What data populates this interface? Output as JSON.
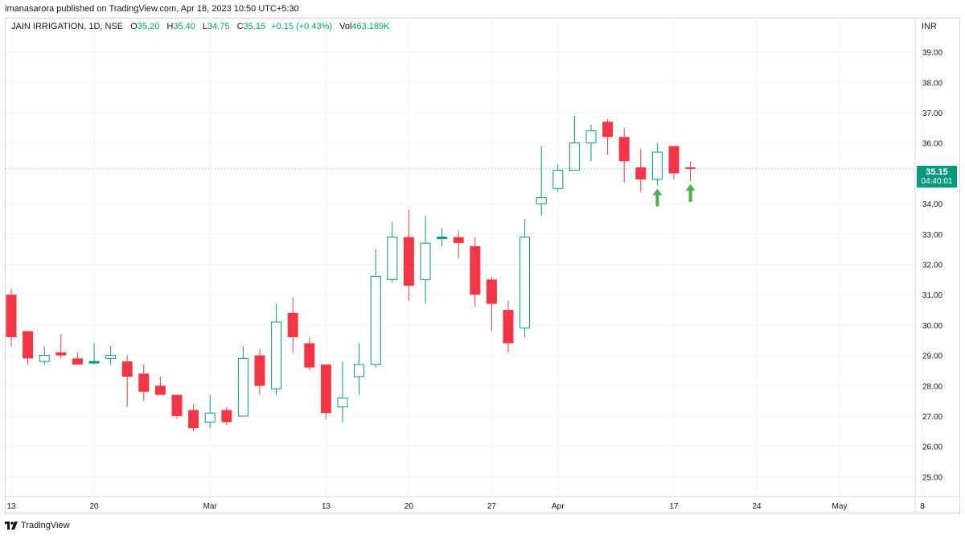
{
  "header": {
    "published_by": "imanasarora published on TradingView.com, Apr 18, 2023 10:50 UTC+5:30"
  },
  "legend": {
    "symbol": "JAIN IRRIGATION, 1D, NSE",
    "open_label": "O",
    "open": "35.20",
    "high_label": "H",
    "high": "35.40",
    "low_label": "L",
    "low": "34.75",
    "close_label": "C",
    "close": "35.15",
    "change": "+0.15 (+0.43%)",
    "volume_label": "Vol",
    "volume": "463.189K"
  },
  "currency": "INR",
  "price_tag": {
    "price": "35.15",
    "countdown": "04:40:01"
  },
  "footer": {
    "brand": "TradingView"
  },
  "colors": {
    "up": "#089981",
    "down": "#f23645",
    "grid": "#f0f3fa",
    "arrow": "#4caf50"
  },
  "chart_data": {
    "type": "candlestick",
    "ylim": [
      24.4,
      39.6
    ],
    "y_ticks": [
      "39.00",
      "38.00",
      "37.00",
      "36.00",
      "35.00",
      "34.00",
      "33.00",
      "32.00",
      "31.00",
      "30.00",
      "29.00",
      "28.00",
      "27.00",
      "26.00",
      "25.00"
    ],
    "x_ticks": [
      {
        "label": "13",
        "i": 0
      },
      {
        "label": "20",
        "i": 5
      },
      {
        "label": "Mar",
        "i": 12
      },
      {
        "label": "13",
        "i": 19
      },
      {
        "label": "20",
        "i": 24
      },
      {
        "label": "27",
        "i": 29
      },
      {
        "label": "Apr",
        "i": 33
      },
      {
        "label": "17",
        "i": 40
      },
      {
        "label": "24",
        "i": 45
      },
      {
        "label": "May",
        "i": 50
      },
      {
        "label": "8",
        "i": 55
      }
    ],
    "candles": [
      {
        "o": 31.0,
        "h": 31.2,
        "l": 29.3,
        "c": 29.6
      },
      {
        "o": 29.8,
        "h": 29.8,
        "l": 28.7,
        "c": 28.9
      },
      {
        "o": 28.8,
        "h": 29.3,
        "l": 28.7,
        "c": 29.0
      },
      {
        "o": 29.1,
        "h": 29.7,
        "l": 28.9,
        "c": 29.0
      },
      {
        "o": 28.9,
        "h": 29.1,
        "l": 28.7,
        "c": 28.7
      },
      {
        "o": 28.8,
        "h": 29.4,
        "l": 28.7,
        "c": 28.8
      },
      {
        "o": 28.9,
        "h": 29.3,
        "l": 28.7,
        "c": 29.0
      },
      {
        "o": 28.8,
        "h": 29.0,
        "l": 27.3,
        "c": 28.3
      },
      {
        "o": 28.4,
        "h": 28.7,
        "l": 27.5,
        "c": 27.8
      },
      {
        "o": 28.0,
        "h": 28.3,
        "l": 27.7,
        "c": 27.7
      },
      {
        "o": 27.7,
        "h": 27.7,
        "l": 26.9,
        "c": 27.0
      },
      {
        "o": 27.2,
        "h": 27.4,
        "l": 26.5,
        "c": 26.6
      },
      {
        "o": 26.8,
        "h": 27.7,
        "l": 26.6,
        "c": 27.1
      },
      {
        "o": 27.2,
        "h": 27.3,
        "l": 26.7,
        "c": 26.8
      },
      {
        "o": 27.0,
        "h": 29.3,
        "l": 27.0,
        "c": 28.9
      },
      {
        "o": 29.0,
        "h": 29.2,
        "l": 27.7,
        "c": 28.0
      },
      {
        "o": 27.9,
        "h": 30.7,
        "l": 27.7,
        "c": 30.1
      },
      {
        "o": 30.4,
        "h": 30.9,
        "l": 29.1,
        "c": 29.6
      },
      {
        "o": 29.4,
        "h": 29.6,
        "l": 28.5,
        "c": 28.6
      },
      {
        "o": 28.7,
        "h": 28.7,
        "l": 26.9,
        "c": 27.1
      },
      {
        "o": 27.3,
        "h": 28.8,
        "l": 26.8,
        "c": 27.6
      },
      {
        "o": 28.3,
        "h": 29.4,
        "l": 27.7,
        "c": 28.7
      },
      {
        "o": 28.7,
        "h": 32.5,
        "l": 28.6,
        "c": 31.6
      },
      {
        "o": 31.5,
        "h": 33.4,
        "l": 31.4,
        "c": 32.9
      },
      {
        "o": 32.9,
        "h": 33.8,
        "l": 30.8,
        "c": 31.3
      },
      {
        "o": 31.5,
        "h": 33.6,
        "l": 30.7,
        "c": 32.7
      },
      {
        "o": 32.9,
        "h": 33.2,
        "l": 32.6,
        "c": 32.9
      },
      {
        "o": 32.9,
        "h": 33.1,
        "l": 32.2,
        "c": 32.7
      },
      {
        "o": 32.6,
        "h": 32.9,
        "l": 30.6,
        "c": 31.0
      },
      {
        "o": 31.5,
        "h": 31.6,
        "l": 29.8,
        "c": 30.7
      },
      {
        "o": 30.5,
        "h": 30.8,
        "l": 29.1,
        "c": 29.4
      },
      {
        "o": 29.9,
        "h": 33.5,
        "l": 29.6,
        "c": 32.9
      },
      {
        "o": 34.0,
        "h": 35.9,
        "l": 33.6,
        "c": 34.2
      },
      {
        "o": 34.5,
        "h": 35.3,
        "l": 34.4,
        "c": 35.1
      },
      {
        "o": 35.1,
        "h": 36.9,
        "l": 35.1,
        "c": 36.0
      },
      {
        "o": 36.0,
        "h": 36.6,
        "l": 35.4,
        "c": 36.4
      },
      {
        "o": 36.7,
        "h": 36.8,
        "l": 35.6,
        "c": 36.2
      },
      {
        "o": 36.2,
        "h": 36.5,
        "l": 34.7,
        "c": 35.4
      },
      {
        "o": 35.2,
        "h": 35.8,
        "l": 34.4,
        "c": 34.8
      },
      {
        "o": 34.8,
        "h": 36.0,
        "l": 34.6,
        "c": 35.7
      },
      {
        "o": 35.9,
        "h": 35.9,
        "l": 34.8,
        "c": 35.0
      },
      {
        "o": 35.2,
        "h": 35.4,
        "l": 34.75,
        "c": 35.15
      }
    ],
    "annotations": [
      {
        "type": "up-arrow",
        "i": 39
      },
      {
        "type": "up-arrow",
        "i": 41
      }
    ]
  }
}
